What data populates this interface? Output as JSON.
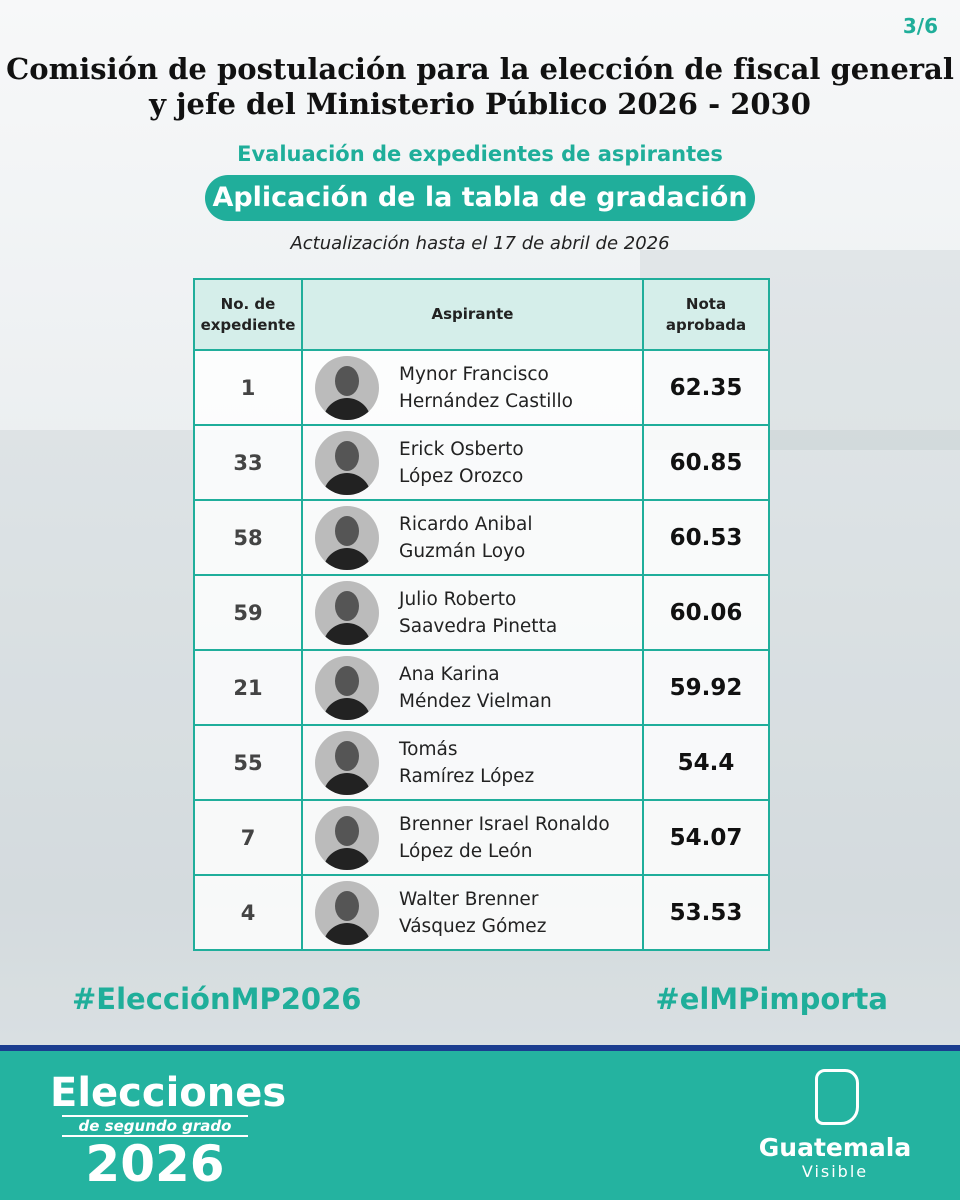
{
  "page_indicator": "3/6",
  "header": {
    "title_lines": [
      "Comisión de postulación para la elección de fiscal general",
      "y jefe del Ministerio Público 2026 - 2030"
    ],
    "subtitle": "Evaluación de expedientes de aspirantes",
    "banner": "Aplicación de la tabla de gradación",
    "update": "Actualización hasta el 17 de abril de 2026"
  },
  "table": {
    "headers": [
      "No. de expediente",
      "Aspirante",
      "Nota aprobada"
    ],
    "rows": [
      [
        "1",
        [
          "Mynor Francisco",
          "Hernández Castillo"
        ],
        "62.35"
      ],
      [
        "33",
        [
          "Erick Osberto",
          "López Orozco"
        ],
        "60.85"
      ],
      [
        "58",
        [
          "Ricardo Anibal",
          "Guzmán Loyo"
        ],
        "60.53"
      ],
      [
        "59",
        [
          "Julio Roberto",
          "Saavedra Pinetta"
        ],
        "60.06"
      ],
      [
        "21",
        [
          "Ana Karina",
          "Méndez Vielman"
        ],
        "59.92"
      ],
      [
        "55",
        [
          "Tomás",
          "Ramírez López"
        ],
        "54.4"
      ],
      [
        "7",
        [
          "Brenner Israel Ronaldo",
          "López de León"
        ],
        "54.07"
      ],
      [
        "4",
        [
          "Walter Brenner",
          "Vásquez Gómez"
        ],
        "53.53"
      ]
    ]
  },
  "hashtags": [
    "#ElecciónMP2026",
    "#elMPimporta"
  ],
  "footer": {
    "event_logo": [
      "Elecciones",
      "de segundo grado",
      "2026"
    ],
    "brand": [
      "Guatemala",
      "Visible"
    ]
  }
}
